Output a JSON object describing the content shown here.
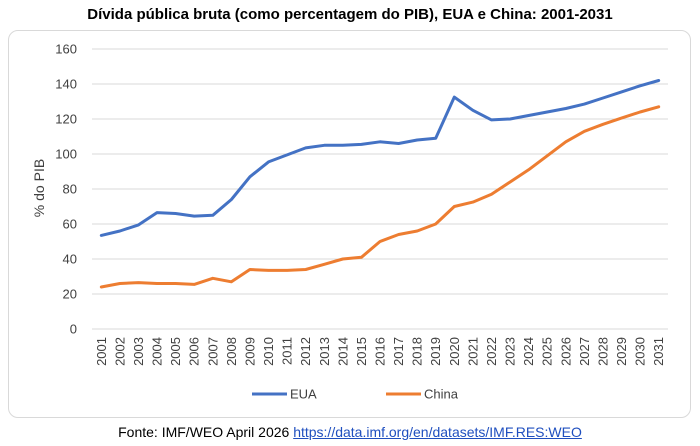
{
  "chart_data": {
    "type": "line",
    "title": "Dívida pública bruta (como percentagem do PIB), EUA e China: 2001-2031",
    "ylabel": "% do PIB",
    "xlabel": "",
    "ylim": [
      0,
      160
    ],
    "yticks": [
      "0",
      "20",
      "40",
      "60",
      "80",
      "100",
      "120",
      "140",
      "160"
    ],
    "grid": true,
    "legend": "bottom",
    "categories": [
      "2001",
      "2002",
      "2003",
      "2004",
      "2005",
      "2006",
      "2007",
      "2008",
      "2009",
      "2010",
      "2011",
      "2012",
      "2013",
      "2014",
      "2015",
      "2016",
      "2017",
      "2018",
      "2019",
      "2020",
      "2021",
      "2022",
      "2023",
      "2024",
      "2025",
      "2026",
      "2027",
      "2028",
      "2029",
      "2030",
      "2031"
    ],
    "series": [
      {
        "name": "EUA",
        "color": "#4472c4",
        "values": [
          53.5,
          56,
          59.5,
          66.5,
          66,
          64.5,
          65,
          74,
          87,
          95.5,
          99.5,
          103.5,
          105,
          105,
          105.5,
          107,
          106,
          108,
          109,
          132.5,
          125,
          119.5,
          120,
          122,
          124,
          126,
          128.5,
          132,
          135.5,
          139,
          142
        ]
      },
      {
        "name": "China",
        "color": "#ed7d31",
        "values": [
          24,
          26,
          26.5,
          26,
          26,
          25.5,
          29,
          27,
          34,
          33.5,
          33.5,
          34,
          37,
          40,
          41,
          50,
          54,
          56,
          60,
          70,
          72.5,
          77,
          84,
          91,
          99,
          107,
          113,
          117,
          120.5,
          124,
          127
        ]
      }
    ]
  },
  "source": {
    "label": "Fonte: IMF/WEO April 2026",
    "link_text": "https://data.imf.org/en/datasets/IMF.RES:WEO"
  }
}
